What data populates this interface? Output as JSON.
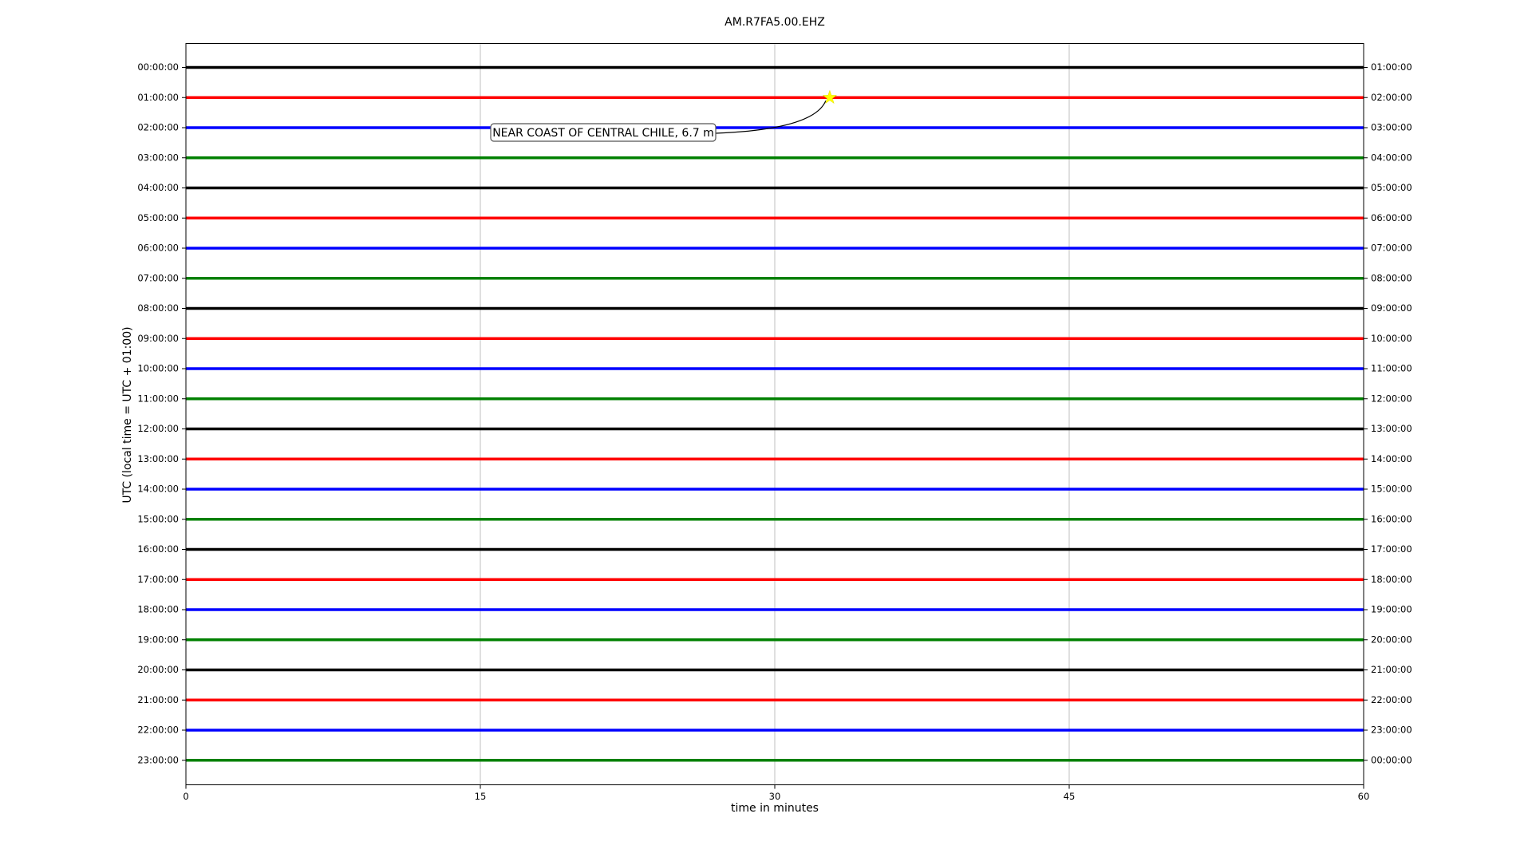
{
  "chart_data": {
    "type": "helicorder",
    "title": "AM.R7FA5.00.EHZ",
    "x_label": "time in minutes",
    "y_label": "UTC (local time = UTC + 01:00)",
    "xlim": [
      0,
      60
    ],
    "xticks": [
      0,
      15,
      30,
      45,
      60
    ],
    "grid": true,
    "series": [
      {
        "name": "00:00:00",
        "right_label": "01:00:00",
        "color": "#000000"
      },
      {
        "name": "01:00:00",
        "right_label": "02:00:00",
        "color": "#ff0000"
      },
      {
        "name": "02:00:00",
        "right_label": "03:00:00",
        "color": "#0000ff"
      },
      {
        "name": "03:00:00",
        "right_label": "04:00:00",
        "color": "#008000"
      },
      {
        "name": "04:00:00",
        "right_label": "05:00:00",
        "color": "#000000"
      },
      {
        "name": "05:00:00",
        "right_label": "06:00:00",
        "color": "#ff0000"
      },
      {
        "name": "06:00:00",
        "right_label": "07:00:00",
        "color": "#0000ff"
      },
      {
        "name": "07:00:00",
        "right_label": "08:00:00",
        "color": "#008000"
      },
      {
        "name": "08:00:00",
        "right_label": "09:00:00",
        "color": "#000000"
      },
      {
        "name": "09:00:00",
        "right_label": "10:00:00",
        "color": "#ff0000"
      },
      {
        "name": "10:00:00",
        "right_label": "11:00:00",
        "color": "#0000ff"
      },
      {
        "name": "11:00:00",
        "right_label": "12:00:00",
        "color": "#008000"
      },
      {
        "name": "12:00:00",
        "right_label": "13:00:00",
        "color": "#000000"
      },
      {
        "name": "13:00:00",
        "right_label": "14:00:00",
        "color": "#ff0000"
      },
      {
        "name": "14:00:00",
        "right_label": "15:00:00",
        "color": "#0000ff"
      },
      {
        "name": "15:00:00",
        "right_label": "16:00:00",
        "color": "#008000"
      },
      {
        "name": "16:00:00",
        "right_label": "17:00:00",
        "color": "#000000"
      },
      {
        "name": "17:00:00",
        "right_label": "18:00:00",
        "color": "#ff0000"
      },
      {
        "name": "18:00:00",
        "right_label": "19:00:00",
        "color": "#0000ff"
      },
      {
        "name": "19:00:00",
        "right_label": "20:00:00",
        "color": "#008000"
      },
      {
        "name": "20:00:00",
        "right_label": "21:00:00",
        "color": "#000000"
      },
      {
        "name": "21:00:00",
        "right_label": "22:00:00",
        "color": "#ff0000"
      },
      {
        "name": "22:00:00",
        "right_label": "23:00:00",
        "color": "#0000ff"
      },
      {
        "name": "23:00:00",
        "right_label": "00:00:00",
        "color": "#008000"
      }
    ],
    "event": {
      "row": 1,
      "time": 32.8,
      "label": "NEAR COAST OF CENTRAL CHILE, 6.7 m"
    }
  }
}
